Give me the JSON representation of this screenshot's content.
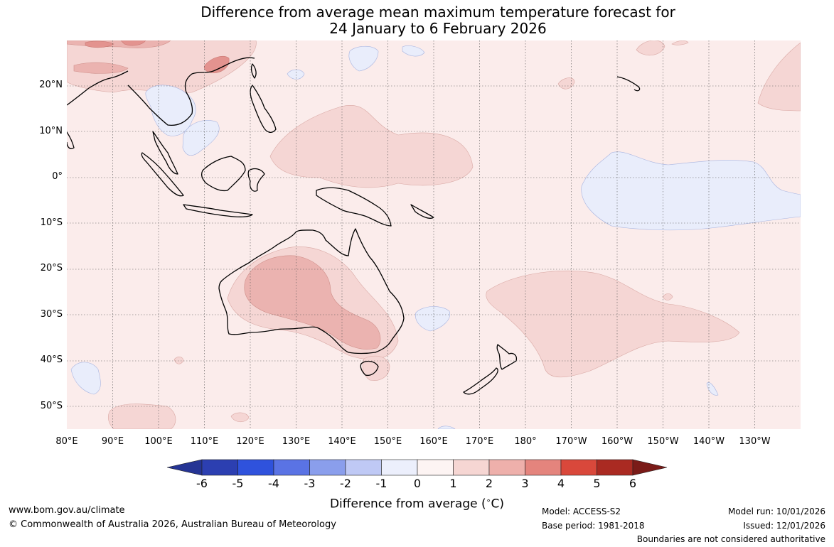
{
  "title": {
    "line1": "Difference from average mean maximum temperature forecast for",
    "line2": "24 January to 6 February 2026"
  },
  "map": {
    "lat_labels": [
      "20°N",
      "10°N",
      "0°",
      "10°S",
      "20°S",
      "30°S",
      "40°S",
      "50°S"
    ],
    "lon_labels": [
      "80°E",
      "90°E",
      "100°E",
      "110°E",
      "120°E",
      "130°E",
      "140°E",
      "150°E",
      "160°E",
      "170°E",
      "180°",
      "170°W",
      "160°W",
      "150°W",
      "140°W",
      "130°W"
    ],
    "colors": {
      "background_0_1": "#fbeceb",
      "anomaly_1_2": "#f5d6d4",
      "anomaly_2_3": "#ebb3b0",
      "anomaly_3_4": "#e3938f",
      "anomaly_neg_1_0": "#e9edfb",
      "coastline": "#000000",
      "border": "#888888",
      "grid": "#555555"
    }
  },
  "colorbar": {
    "ticks": [
      "-6",
      "-5",
      "-4",
      "-3",
      "-2",
      "-1",
      "0",
      "1",
      "2",
      "3",
      "4",
      "5",
      "6"
    ],
    "colors": [
      "#253494",
      "#2c3fb1",
      "#2f52dc",
      "#5a73e4",
      "#8a9eec",
      "#bfc9f5",
      "#eceffc",
      "#fdf4f3",
      "#f6d6d3",
      "#eeb0ab",
      "#e4847d",
      "#d9483b",
      "#aa2a22",
      "#7a1b18"
    ],
    "label": "Difference from average (",
    "label_unit": "C)",
    "degree": "∘"
  },
  "footer": {
    "url": "www.bom.gov.au/climate",
    "copyright": "© Commonwealth of Australia 2026, Australian Bureau of Meteorology",
    "model": "Model: ACCESS-S2",
    "base_period": "Base period: 1981-2018",
    "model_run": "Model run: 10/01/2026",
    "issued": "Issued: 12/01/2026",
    "disclaimer": "Boundaries are not considered authoritative"
  }
}
